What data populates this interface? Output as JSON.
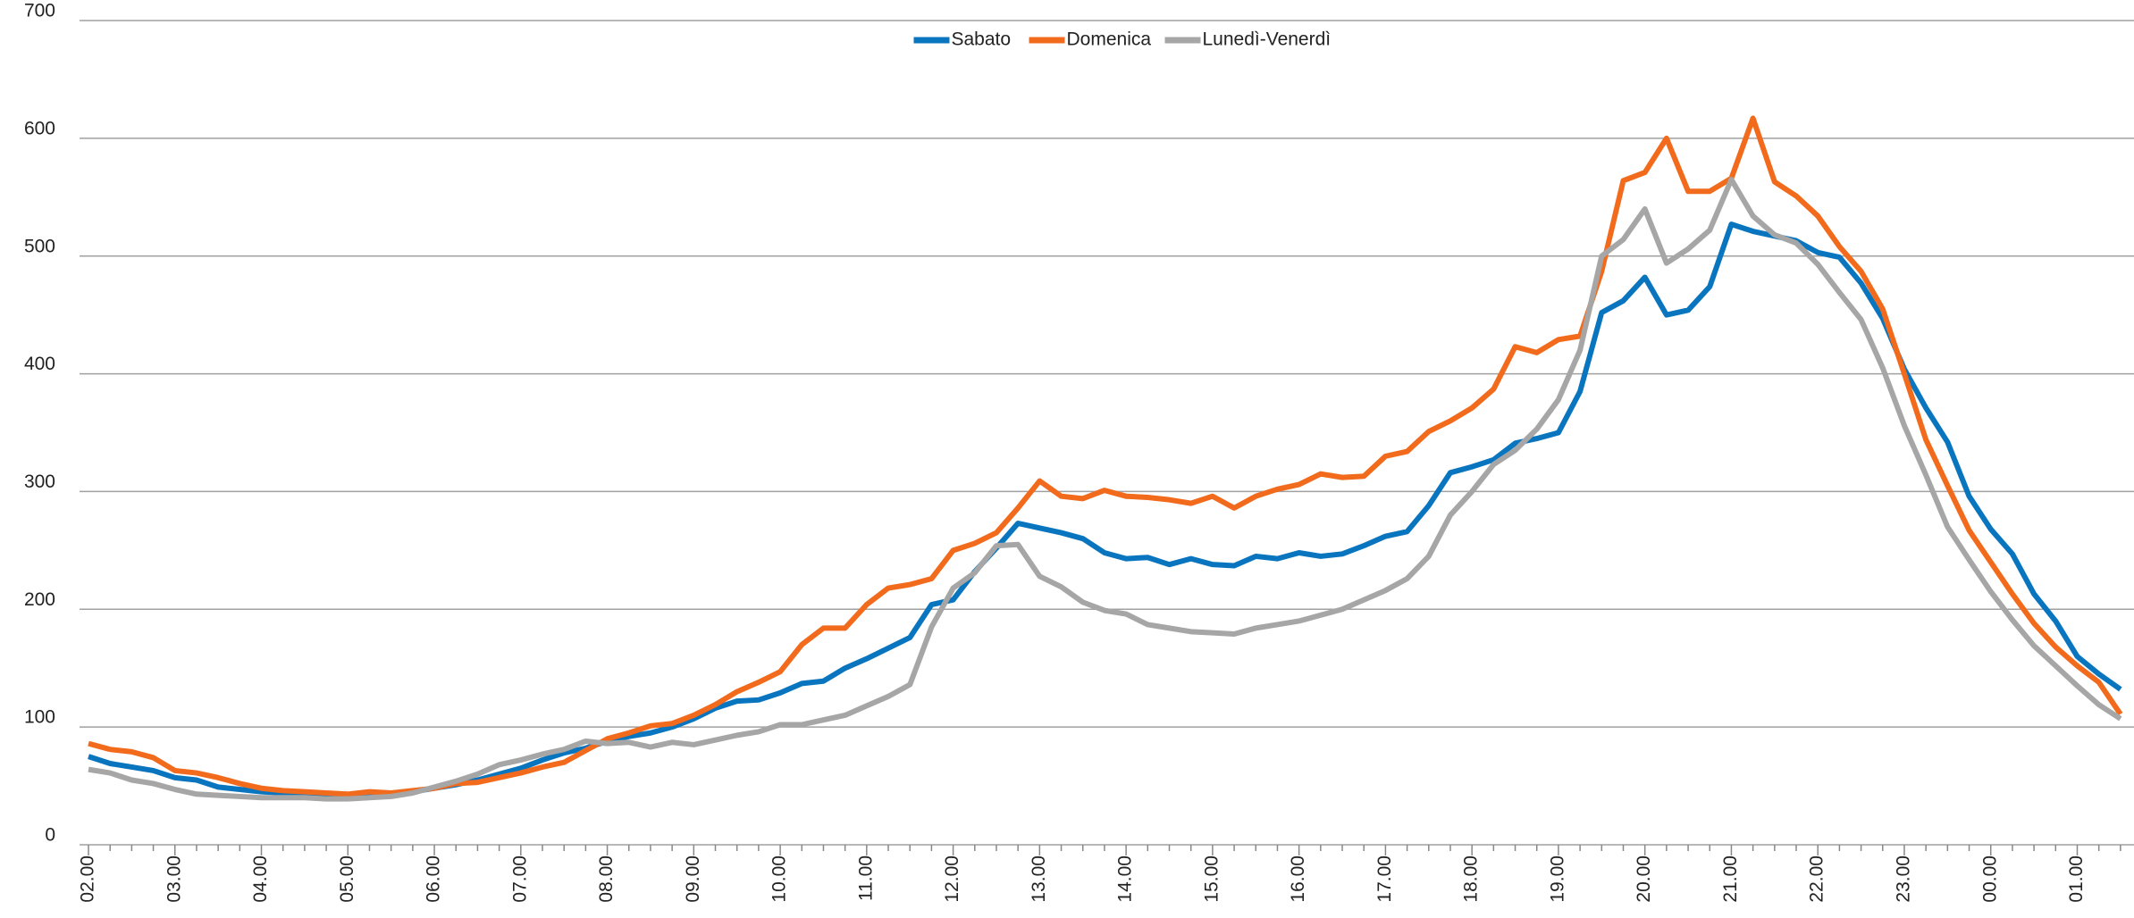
{
  "chart_data": {
    "type": "line",
    "categories": [
      "02.00",
      null,
      null,
      null,
      "03.00",
      null,
      null,
      null,
      "04.00",
      null,
      null,
      null,
      "05.00",
      null,
      null,
      null,
      "06.00",
      null,
      null,
      null,
      "07.00",
      null,
      null,
      null,
      "08.00",
      null,
      null,
      null,
      "09.00",
      null,
      null,
      null,
      "10.00",
      null,
      null,
      null,
      "11.00",
      null,
      null,
      null,
      "12.00",
      null,
      null,
      null,
      "13.00",
      null,
      null,
      null,
      "14.00",
      null,
      null,
      null,
      "15.00",
      null,
      null,
      null,
      "16.00",
      null,
      null,
      null,
      "17.00",
      null,
      null,
      null,
      "18.00",
      null,
      null,
      null,
      "19.00",
      null,
      null,
      null,
      "20.00",
      null,
      null,
      null,
      "21.00",
      null,
      null,
      null,
      "22.00",
      null,
      null,
      null,
      "23.00",
      null,
      null,
      null,
      "00.00",
      null,
      null,
      null,
      "01.00",
      null,
      null
    ],
    "series": [
      {
        "name": "Sabato",
        "color": "#0a75bf",
        "values": [
          75,
          69,
          66,
          63,
          57,
          55,
          49,
          47,
          45,
          44,
          43,
          43,
          42,
          42,
          43,
          45,
          48,
          51,
          55,
          60,
          65,
          72,
          78,
          82,
          88,
          92,
          95,
          100,
          107,
          116,
          122,
          123,
          129,
          137,
          139,
          150,
          158,
          167,
          176,
          204,
          208,
          232,
          252,
          273,
          269,
          265,
          260,
          248,
          243,
          244,
          238,
          243,
          238,
          237,
          245,
          243,
          248,
          245,
          247,
          254,
          262,
          266,
          288,
          316,
          321,
          327,
          341,
          345,
          350,
          385,
          452,
          462,
          482,
          450,
          454,
          474,
          527,
          521,
          517,
          513,
          503,
          499,
          477,
          447,
          404,
          371,
          342,
          296,
          268,
          247,
          213,
          190,
          160,
          145,
          132
        ]
      },
      {
        "name": "Domenica",
        "color": "#f26b1d",
        "values": [
          86,
          81,
          79,
          74,
          63,
          61,
          57,
          52,
          48,
          46,
          45,
          44,
          43,
          45,
          44,
          46,
          48,
          52,
          53,
          57,
          61,
          66,
          70,
          80,
          90,
          95,
          101,
          103,
          110,
          119,
          130,
          138,
          147,
          170,
          184,
          184,
          204,
          218,
          221,
          226,
          250,
          256,
          265,
          286,
          309,
          296,
          294,
          301,
          296,
          295,
          293,
          290,
          296,
          286,
          296,
          302,
          306,
          315,
          312,
          313,
          330,
          334,
          351,
          360,
          371,
          387,
          423,
          418,
          429,
          432,
          487,
          564,
          571,
          600,
          555,
          555,
          566,
          617,
          563,
          551,
          534,
          508,
          487,
          455,
          400,
          344,
          305,
          267,
          240,
          213,
          188,
          168,
          152,
          138,
          111
        ]
      },
      {
        "name": "Lunedì-Venerdì",
        "color": "#a6a6a6",
        "values": [
          64,
          61,
          55,
          52,
          47,
          43,
          42,
          41,
          40,
          40,
          40,
          39,
          39,
          40,
          41,
          44,
          49,
          54,
          60,
          68,
          72,
          77,
          81,
          88,
          86,
          87,
          83,
          87,
          85,
          89,
          93,
          96,
          102,
          102,
          106,
          110,
          118,
          126,
          136,
          185,
          218,
          231,
          254,
          255,
          228,
          219,
          206,
          199,
          196,
          187,
          184,
          181,
          180,
          179,
          184,
          187,
          190,
          195,
          200,
          208,
          216,
          226,
          245,
          280,
          300,
          323,
          335,
          353,
          378,
          420,
          500,
          514,
          540,
          494,
          506,
          522,
          565,
          534,
          518,
          511,
          493,
          469,
          446,
          405,
          356,
          314,
          270,
          242,
          215,
          191,
          169,
          152,
          135,
          119,
          107
        ]
      }
    ],
    "ylim": [
      0,
      700
    ],
    "yticks": [
      0,
      100,
      200,
      300,
      400,
      500,
      600,
      700
    ],
    "grid": true,
    "legend": "top"
  }
}
